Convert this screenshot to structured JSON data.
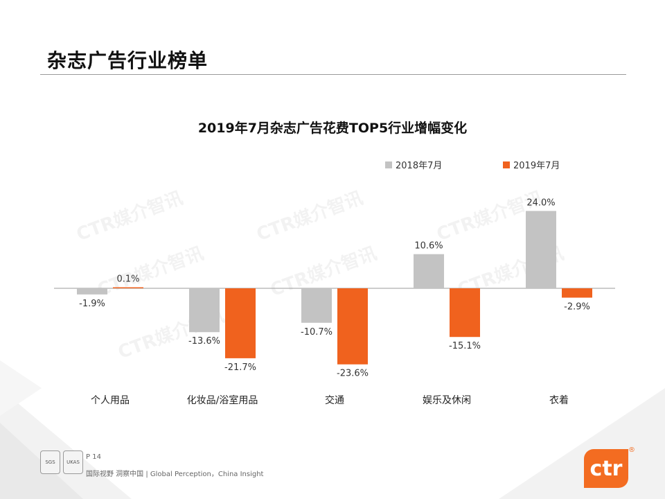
{
  "header": {
    "title": "杂志广告行业榜单"
  },
  "chart_data": {
    "type": "bar",
    "title": "2019年7月杂志广告花费TOP5行业增幅变化",
    "categories": [
      "个人用品",
      "化妆品/浴室用品",
      "交通",
      "娱乐及休闲",
      "衣着"
    ],
    "series": [
      {
        "name": "2018年7月",
        "values": [
          -1.9,
          -13.6,
          -10.7,
          10.6,
          24.0
        ],
        "labels": [
          "-1.9%",
          "-13.6%",
          "-10.7%",
          "10.6%",
          "24.0%"
        ],
        "color": "#c3c3c3"
      },
      {
        "name": "2019年7月",
        "values": [
          0.1,
          -21.7,
          -23.6,
          -15.1,
          -2.9
        ],
        "labels": [
          "0.1%",
          "-21.7%",
          "-23.6%",
          "-15.1%",
          "-2.9%"
        ],
        "color": "#f0621e"
      }
    ],
    "ylim": [
      -25,
      25
    ],
    "legend": "top-right",
    "grid": false
  },
  "watermarks": [
    "CTR媒介智讯",
    "CTR媒介智讯",
    "CTR媒介智讯",
    "CTR媒介智讯",
    "CTR媒介智讯",
    "CTR媒介智讯",
    "CTR媒介智讯"
  ],
  "footer": {
    "page": "P 14",
    "slogan": "国际视野  洞察中国 |  Global Perception，China Insight",
    "logo_text": "ctr",
    "reg_mark": "®",
    "cert1": "SGS",
    "cert2": "UKAS"
  },
  "colors": {
    "accent": "#f0621e",
    "gray": "#c3c3c3"
  }
}
